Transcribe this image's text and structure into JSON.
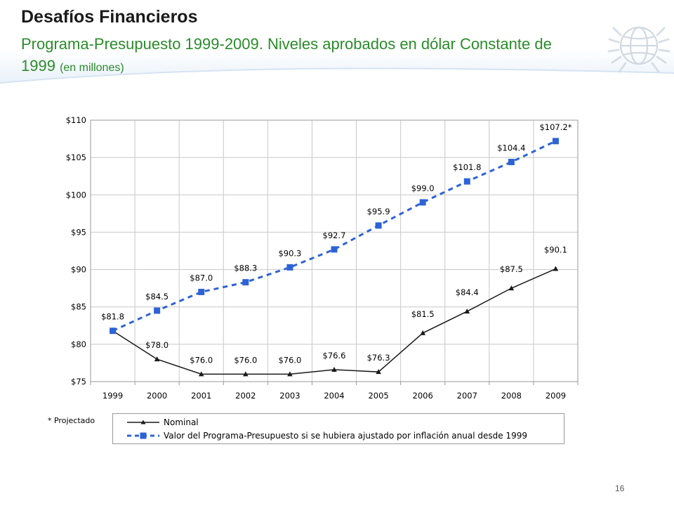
{
  "slide": {
    "title": "Desafíos Financieros",
    "subtitle_main": "Programa-Presupuesto 1999-2009. Niveles aprobados en dólar Constante de 1999",
    "subtitle_small": "(en millones)",
    "footnote": "* Projectado",
    "page_number": "16",
    "logo_icon": "globe-emblem-icon"
  },
  "colors": {
    "nominal": "#1a1a1a",
    "adjusted": "#2e63d6",
    "subtitle": "#2a8c2a",
    "grid": "#c8c8c8"
  },
  "chart_data": {
    "type": "line",
    "title": "",
    "xlabel": "",
    "ylabel": "",
    "categories": [
      "1999",
      "2000",
      "2001",
      "2002",
      "2003",
      "2004",
      "2005",
      "2006",
      "2007",
      "2008",
      "2009"
    ],
    "ylim": [
      75,
      110
    ],
    "yticks": [
      75,
      80,
      85,
      90,
      95,
      100,
      105,
      110
    ],
    "ytick_labels": [
      "$75",
      "$80",
      "$85",
      "$90",
      "$95",
      "$100",
      "$105",
      "$110"
    ],
    "grid": true,
    "legend_position": "bottom",
    "series": [
      {
        "name": "Nominal",
        "style": "solid-line-triangle-markers",
        "values": [
          81.8,
          78.0,
          76.0,
          76.0,
          76.0,
          76.6,
          76.3,
          81.5,
          84.4,
          87.5,
          90.1
        ],
        "labels": [
          "",
          "$78.0",
          "$76.0",
          "$76.0",
          "$76.0",
          "$76.6",
          "$76.3",
          "$81.5",
          "$84.4",
          "$87.5",
          "$90.1"
        ]
      },
      {
        "name": "Valor del Programa-Presupuesto si se hubiera ajustado por inflación anual desde 1999",
        "style": "dashed-line-square-markers",
        "values": [
          81.8,
          84.5,
          87.0,
          88.3,
          90.3,
          92.7,
          95.9,
          99.0,
          101.8,
          104.4,
          107.2
        ],
        "labels": [
          "$81.8",
          "$84.5",
          "$87.0",
          "$88.3",
          "$90.3",
          "$92.7",
          "$95.9",
          "$99.0",
          "$101.8",
          "$104.4",
          "$107.2*"
        ]
      }
    ]
  }
}
